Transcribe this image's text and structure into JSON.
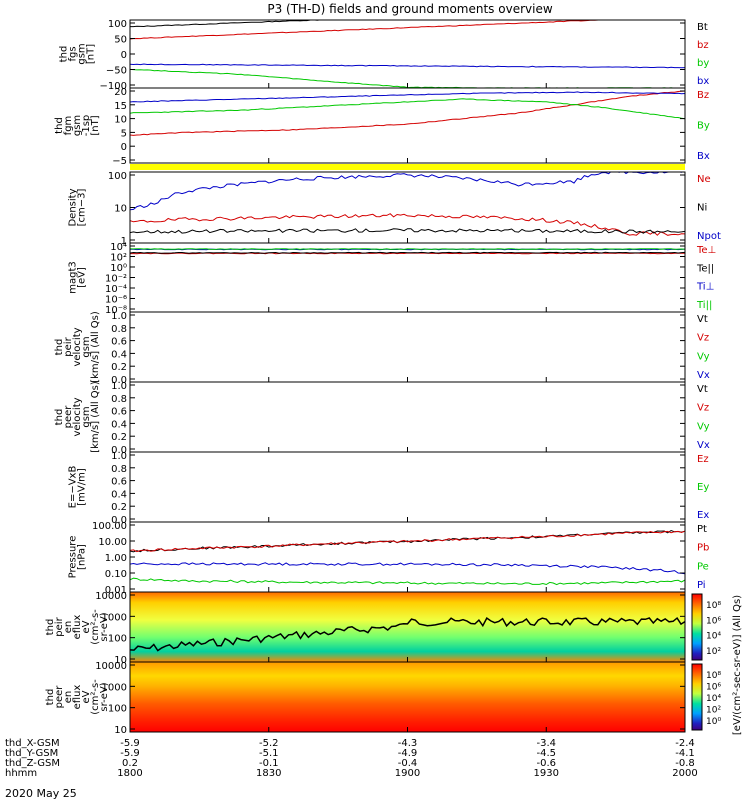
{
  "title": "P3 (TH-D) fields and ground moments overview",
  "date_label": "2020 May 25",
  "colors": {
    "black": "#000000",
    "red": "#d40000",
    "green": "#00c800",
    "blue": "#0000c8",
    "yellow": "#ffff00"
  },
  "ephemeris": {
    "rows": [
      {
        "label": "thd_X-GSM",
        "values": [
          "-5.9",
          "-5.2",
          "-4.3",
          "-3.4",
          "-2.4"
        ]
      },
      {
        "label": "thd_Y-GSM",
        "values": [
          "-5.9",
          "-5.1",
          "-4.9",
          "-4.5",
          "-4.1"
        ]
      },
      {
        "label": "thd_Z-GSM",
        "values": [
          "0.2",
          "-0.1",
          "-0.4",
          "-0.6",
          "-0.8"
        ]
      },
      {
        "label": "hhmm",
        "values": [
          "1800",
          "1830",
          "1900",
          "1930",
          "2000"
        ]
      }
    ]
  },
  "chart_data": [
    {
      "id": "fgs",
      "type": "line",
      "ylabel": [
        "thd",
        "fgs",
        "gsm",
        "[nT]"
      ],
      "yticks": [
        "100",
        "50",
        "0",
        "−50",
        "−100"
      ],
      "ylim": [
        -100,
        100
      ],
      "series": [
        {
          "name": "Bt",
          "color": "black",
          "x": [
            0,
            1
          ],
          "y": [
            80,
            140
          ]
        },
        {
          "name": "bz",
          "color": "red",
          "x": [
            0,
            1
          ],
          "y": [
            45,
            110
          ]
        },
        {
          "name": "by",
          "color": "green",
          "x": [
            0,
            0.2,
            0.35,
            0.5,
            0.7,
            1
          ],
          "y": [
            -45,
            -60,
            -80,
            -98,
            -100,
            -100
          ]
        },
        {
          "name": "bx",
          "color": "blue",
          "x": [
            0,
            0.5,
            1
          ],
          "y": [
            -30,
            -35,
            -40
          ]
        }
      ]
    },
    {
      "id": "fgm",
      "type": "line",
      "ylabel": [
        "thd",
        "fgm",
        "gsm",
        "-1sp",
        "[nT]"
      ],
      "yticks": [
        "20",
        "15",
        "10",
        "5",
        "0",
        "−5"
      ],
      "ylim": [
        -6,
        21
      ],
      "series": [
        {
          "name": "Bz",
          "color": "red",
          "x": [
            0,
            0.1,
            0.3,
            0.5,
            0.6,
            0.7,
            0.8,
            0.9,
            1
          ],
          "y": [
            4,
            5,
            6,
            8,
            10,
            12,
            15,
            18,
            20
          ]
        },
        {
          "name": "By",
          "color": "green",
          "x": [
            0,
            0.2,
            0.4,
            0.6,
            0.75,
            0.85,
            1
          ],
          "y": [
            12,
            13,
            15,
            17,
            16,
            14,
            10
          ]
        },
        {
          "name": "Bx",
          "color": "blue",
          "x": [
            0,
            0.2,
            0.4,
            0.6,
            0.8,
            1
          ],
          "y": [
            16,
            17,
            18,
            19,
            19.5,
            19
          ]
        }
      ]
    },
    {
      "id": "density",
      "type": "line",
      "ylabel": [
        "Density",
        "[cm−3]"
      ],
      "yticks": [
        "100",
        "10",
        "1"
      ],
      "ylim": [
        0.2,
        200
      ],
      "scale": "log",
      "series": [
        {
          "name": "Ne",
          "color": "red",
          "x": [
            0,
            0.1,
            0.3,
            0.5,
            0.7,
            0.8,
            0.85,
            0.9,
            1
          ],
          "y": [
            1.5,
            2,
            2.5,
            3,
            2.2,
            1.4,
            0.9,
            0.5,
            0.5
          ]
        },
        {
          "name": "Ni",
          "color": "black",
          "x": [
            0,
            0.5,
            1
          ],
          "y": [
            0.6,
            0.7,
            0.6
          ]
        },
        {
          "name": "Npot",
          "color": "blue",
          "x": [
            0,
            0.05,
            0.1,
            0.2,
            0.3,
            0.5,
            0.7,
            0.8,
            0.85
          ],
          "y": [
            5,
            10,
            30,
            60,
            100,
            150,
            60,
            80,
            200
          ]
        }
      ]
    },
    {
      "id": "magt3",
      "type": "line",
      "ylabel": [
        "magt3",
        "[eV]"
      ],
      "yticks": [
        "10⁴",
        "10²",
        "10⁰",
        "10⁻²",
        "10⁻⁴",
        "10⁻⁶",
        "10⁻⁸"
      ],
      "ylim": [
        1e-09,
        100000.0
      ],
      "scale": "log",
      "series": [
        {
          "name": "Te⊥",
          "color": "red",
          "x": [
            0,
            1
          ],
          "y": [
            800,
            800
          ]
        },
        {
          "name": "Te||",
          "color": "black",
          "x": [
            0,
            1
          ],
          "y": [
            1000,
            1100
          ]
        },
        {
          "name": "Ti⊥",
          "color": "blue",
          "x": [
            0,
            1
          ],
          "y": [
            5000,
            5000
          ]
        },
        {
          "name": "Ti||",
          "color": "green",
          "x": [
            0,
            1
          ],
          "y": [
            6000,
            6000
          ]
        }
      ]
    },
    {
      "id": "peir_vel",
      "type": "line",
      "ylabel": [
        "thd",
        "peir",
        "velocity",
        "gsm",
        "[km/s] (All Qs)"
      ],
      "yticks": [
        "1.0",
        "0.8",
        "0.6",
        "0.4",
        "0.2",
        "0.0"
      ],
      "ylim": [
        0,
        1
      ],
      "series": [
        {
          "name": "Vt",
          "color": "black"
        },
        {
          "name": "Vz",
          "color": "red"
        },
        {
          "name": "Vy",
          "color": "green"
        },
        {
          "name": "Vx",
          "color": "blue"
        }
      ]
    },
    {
      "id": "peer_vel",
      "type": "line",
      "ylabel": [
        "thd",
        "peer",
        "velocity",
        "gsm",
        "[km/s] (All Qs)"
      ],
      "yticks": [
        "1.0",
        "0.8",
        "0.6",
        "0.4",
        "0.2",
        "0.0"
      ],
      "ylim": [
        0,
        1
      ],
      "series": [
        {
          "name": "Vt",
          "color": "black"
        },
        {
          "name": "Vz",
          "color": "red"
        },
        {
          "name": "Vy",
          "color": "green"
        },
        {
          "name": "Vx",
          "color": "blue"
        }
      ]
    },
    {
      "id": "efield",
      "type": "line",
      "ylabel": [
        "E=−VxB",
        "[mV/m]"
      ],
      "yticks": [
        "1.0",
        "0.8",
        "0.6",
        "0.4",
        "0.2",
        "0.0"
      ],
      "ylim": [
        0,
        1
      ],
      "series": [
        {
          "name": "Ez",
          "color": "red"
        },
        {
          "name": "Ey",
          "color": "green"
        },
        {
          "name": "Ex",
          "color": "blue"
        }
      ]
    },
    {
      "id": "pressure",
      "type": "line",
      "ylabel": [
        "Pressure",
        "[nPa]"
      ],
      "yticks": [
        "100.00",
        "10.00",
        "1.00",
        "0.10",
        "0.01"
      ],
      "ylim": [
        0.006,
        150
      ],
      "scale": "log",
      "series": [
        {
          "name": "Pt",
          "color": "black",
          "x": [
            0,
            0.25,
            0.5,
            0.75,
            1
          ],
          "y": [
            2.2,
            4.5,
            9,
            18,
            40
          ]
        },
        {
          "name": "Pb",
          "color": "red",
          "x": [
            0,
            0.25,
            0.5,
            0.75,
            1
          ],
          "y": [
            2.2,
            4.5,
            9,
            18,
            38
          ]
        },
        {
          "name": "Pe",
          "color": "green",
          "x": [
            0,
            0.1,
            0.3,
            0.5,
            0.7,
            0.85,
            1
          ],
          "y": [
            0.04,
            0.03,
            0.025,
            0.022,
            0.02,
            0.022,
            0.03
          ]
        },
        {
          "name": "Pi",
          "color": "blue",
          "x": [
            0,
            0.5,
            0.7,
            0.85,
            1
          ],
          "y": [
            0.35,
            0.34,
            0.3,
            0.22,
            0.1
          ]
        }
      ]
    },
    {
      "id": "peir_eflux",
      "type": "heatmap",
      "ylabel": [
        "thd",
        "peir",
        "en",
        "eflux",
        "eV",
        "(cm²-s-",
        "sr-eV)"
      ],
      "yticks": [
        "10000",
        "1000",
        "100",
        "10"
      ]
    },
    {
      "id": "peer_eflux",
      "type": "heatmap",
      "ylabel": [
        "thd",
        "peer",
        "en",
        "eflux",
        "eV",
        "(cm²-s-",
        "sr-eV)"
      ],
      "yticks": [
        "10000",
        "1000",
        "100",
        "10"
      ]
    }
  ],
  "colorbar": {
    "ticks": [
      "10⁸",
      "10⁶",
      "10⁴",
      "10²"
    ],
    "ticks_lower": [
      "10⁸",
      "10⁶",
      "10⁴",
      "10²",
      "10⁰"
    ],
    "label": "[eV/(cm²-sec-sr-eV)] (All Qs)"
  }
}
